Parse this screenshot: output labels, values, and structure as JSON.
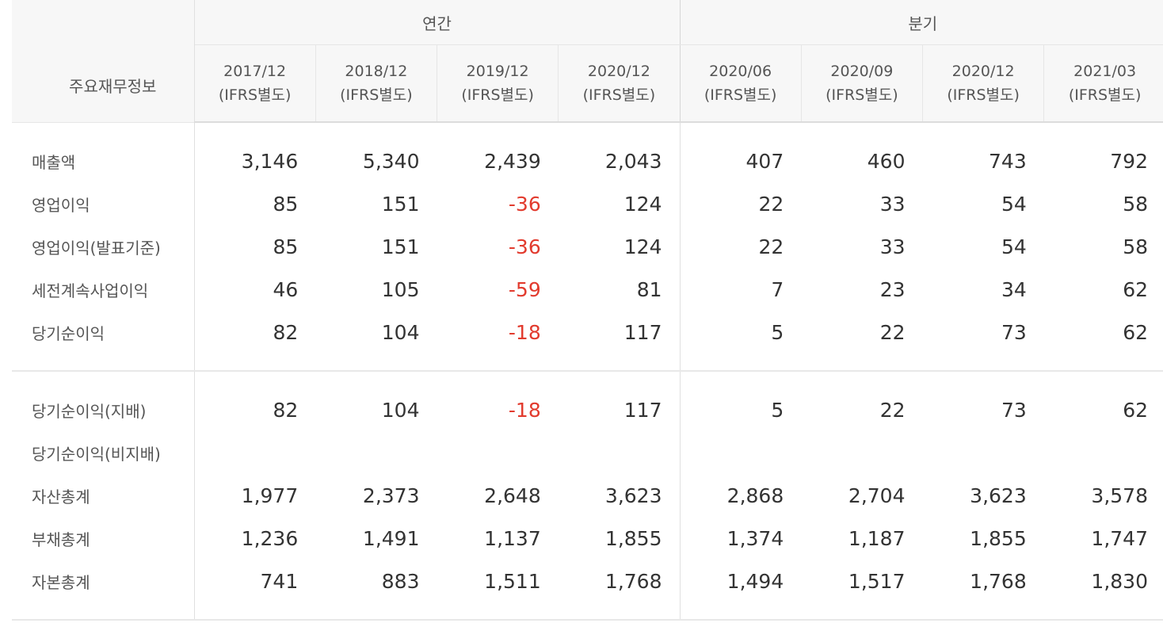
{
  "table": {
    "title": "주요재무정보",
    "groups": {
      "annual": "연간",
      "quarterly": "분기"
    },
    "periods": [
      {
        "period": "2017/12",
        "standard": "(IFRS별도)"
      },
      {
        "period": "2018/12",
        "standard": "(IFRS별도)"
      },
      {
        "period": "2019/12",
        "standard": "(IFRS별도)"
      },
      {
        "period": "2020/12",
        "standard": "(IFRS별도)"
      },
      {
        "period": "2020/06",
        "standard": "(IFRS별도)"
      },
      {
        "period": "2020/09",
        "standard": "(IFRS별도)"
      },
      {
        "period": "2020/12",
        "standard": "(IFRS별도)"
      },
      {
        "period": "2021/03",
        "standard": "(IFRS별도)"
      }
    ],
    "rows": [
      {
        "label": "매출액",
        "values": [
          "3,146",
          "5,340",
          "2,439",
          "2,043",
          "407",
          "460",
          "743",
          "792"
        ]
      },
      {
        "label": "영업이익",
        "values": [
          "85",
          "151",
          "-36",
          "124",
          "22",
          "33",
          "54",
          "58"
        ]
      },
      {
        "label": "영업이익(발표기준)",
        "values": [
          "85",
          "151",
          "-36",
          "124",
          "22",
          "33",
          "54",
          "58"
        ]
      },
      {
        "label": "세전계속사업이익",
        "values": [
          "46",
          "105",
          "-59",
          "81",
          "7",
          "23",
          "34",
          "62"
        ]
      },
      {
        "label": "당기순이익",
        "values": [
          "82",
          "104",
          "-18",
          "117",
          "5",
          "22",
          "73",
          "62"
        ]
      },
      {
        "label": "당기순이익(지배)",
        "values": [
          "82",
          "104",
          "-18",
          "117",
          "5",
          "22",
          "73",
          "62"
        ]
      },
      {
        "label": "당기순이익(비지배)",
        "values": [
          "",
          "",
          "",
          "",
          "",
          "",
          "",
          ""
        ]
      },
      {
        "label": "자산총계",
        "values": [
          "1,977",
          "2,373",
          "2,648",
          "3,623",
          "2,868",
          "2,704",
          "3,623",
          "3,578"
        ]
      },
      {
        "label": "부채총계",
        "values": [
          "1,236",
          "1,491",
          "1,137",
          "1,855",
          "1,374",
          "1,187",
          "1,855",
          "1,747"
        ]
      },
      {
        "label": "자본총계",
        "values": [
          "741",
          "883",
          "1,511",
          "1,768",
          "1,494",
          "1,517",
          "1,768",
          "1,830"
        ]
      }
    ],
    "negative_color": "#e23b2e"
  }
}
